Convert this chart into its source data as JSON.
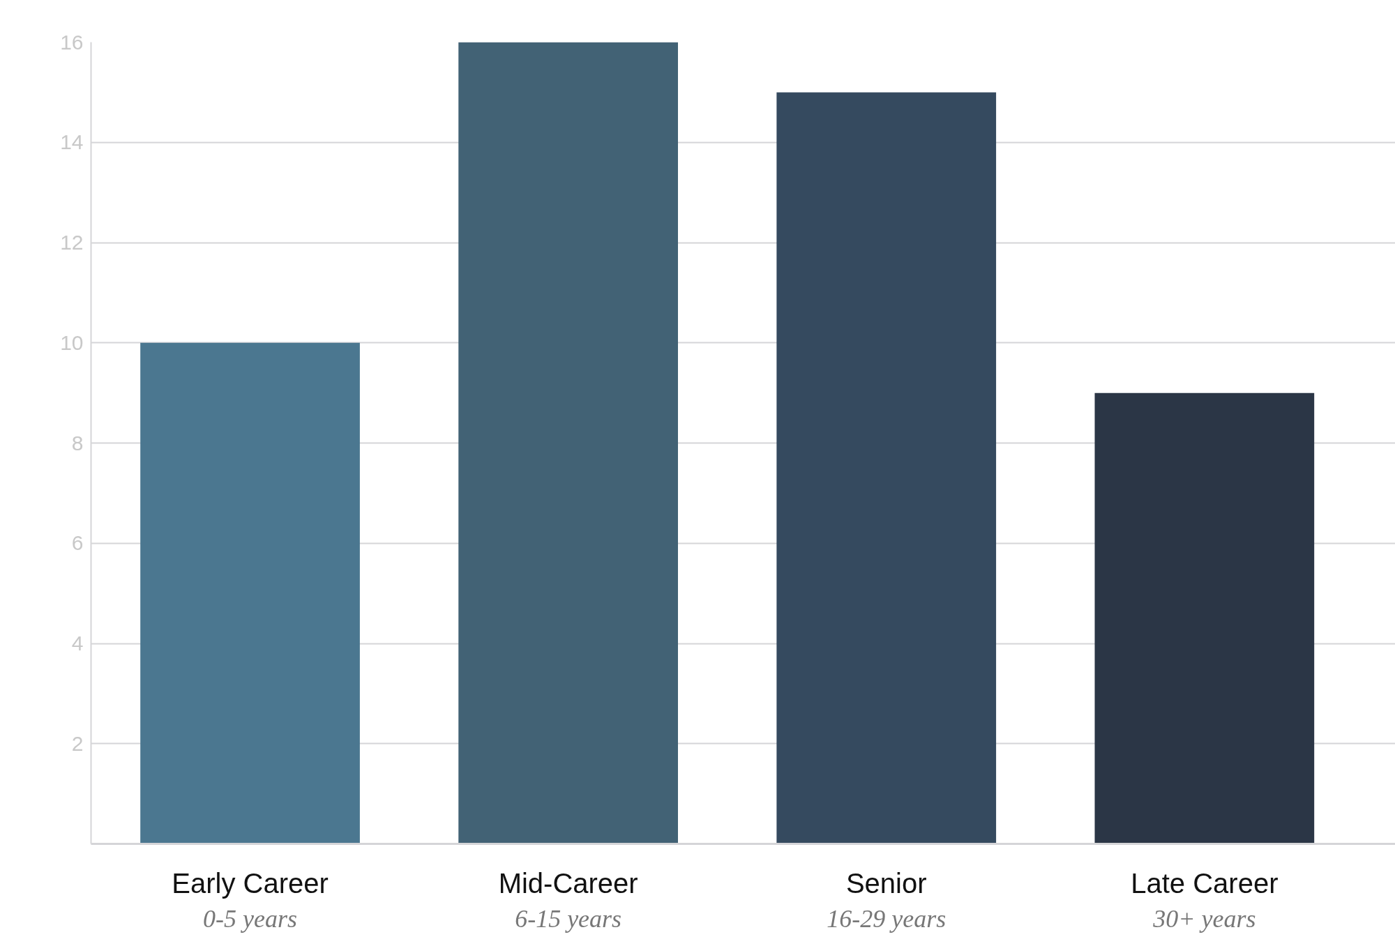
{
  "chart_data": {
    "type": "bar",
    "categories": [
      "Early Career\n0-5 years",
      "Mid-Career\n6-15 years",
      "Senior\n16-29 years",
      "Late Career\n30+ years"
    ],
    "values": [
      10,
      16,
      15,
      9
    ],
    "colors": [
      "#4b7790",
      "#426275",
      "#354a5f",
      "#2b3646"
    ],
    "ylim": [
      0,
      16
    ],
    "yticks": [
      2,
      4,
      6,
      8,
      10,
      12,
      14,
      16
    ],
    "grid": "y"
  }
}
